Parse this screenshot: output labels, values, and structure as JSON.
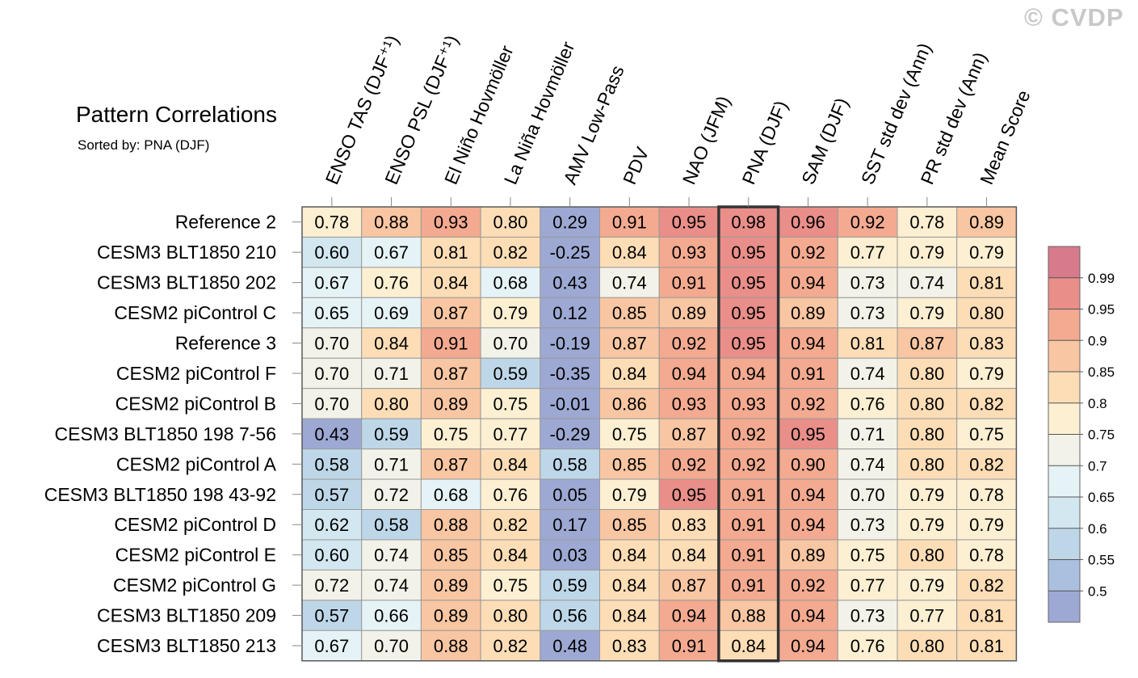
{
  "watermark": "© CVDP",
  "title": "Pattern Correlations",
  "subtitle": "Sorted by: PNA (DJF)",
  "chart_data": {
    "type": "heatmap",
    "title": "Pattern Correlations",
    "subtitle": "Sorted by: PNA (DJF)",
    "columns": [
      "ENSO TAS (DJF⁺¹)",
      "ENSO PSL (DJF⁺¹)",
      "El Niño Hovmöller",
      "La Niña Hovmöller",
      "AMV Low-Pass",
      "PDV",
      "NAO (JFM)",
      "PNA (DJF)",
      "SAM (DJF)",
      "SST std dev (Ann)",
      "PR std dev (Ann)",
      "Mean Score"
    ],
    "rows": [
      "Reference 2",
      "CESM3 BLT1850 210",
      "CESM3 BLT1850 202",
      "CESM2 piControl C",
      "Reference 3",
      "CESM2 piControl F",
      "CESM2 piControl B",
      "CESM3 BLT1850 198 7-56",
      "CESM2 piControl A",
      "CESM3 BLT1850 198 43-92",
      "CESM2 piControl D",
      "CESM2 piControl E",
      "CESM2 piControl G",
      "CESM3 BLT1850 209",
      "CESM3 BLT1850 213"
    ],
    "values": [
      [
        0.78,
        0.88,
        0.93,
        0.8,
        0.29,
        0.91,
        0.95,
        0.98,
        0.96,
        0.92,
        0.78,
        0.89
      ],
      [
        0.6,
        0.67,
        0.81,
        0.82,
        -0.25,
        0.84,
        0.93,
        0.95,
        0.92,
        0.77,
        0.79,
        0.79
      ],
      [
        0.67,
        0.76,
        0.84,
        0.68,
        0.43,
        0.74,
        0.91,
        0.95,
        0.94,
        0.73,
        0.74,
        0.81
      ],
      [
        0.65,
        0.69,
        0.87,
        0.79,
        0.12,
        0.85,
        0.89,
        0.95,
        0.89,
        0.73,
        0.79,
        0.8
      ],
      [
        0.7,
        0.84,
        0.91,
        0.7,
        -0.19,
        0.87,
        0.92,
        0.95,
        0.94,
        0.81,
        0.87,
        0.83
      ],
      [
        0.7,
        0.71,
        0.87,
        0.59,
        -0.35,
        0.84,
        0.94,
        0.94,
        0.91,
        0.74,
        0.8,
        0.79
      ],
      [
        0.7,
        0.8,
        0.89,
        0.75,
        -0.01,
        0.86,
        0.93,
        0.93,
        0.92,
        0.76,
        0.8,
        0.82
      ],
      [
        0.43,
        0.59,
        0.75,
        0.77,
        -0.29,
        0.75,
        0.87,
        0.92,
        0.95,
        0.71,
        0.8,
        0.75
      ],
      [
        0.58,
        0.71,
        0.87,
        0.84,
        0.58,
        0.85,
        0.92,
        0.92,
        0.9,
        0.74,
        0.8,
        0.82
      ],
      [
        0.57,
        0.72,
        0.68,
        0.76,
        0.05,
        0.79,
        0.95,
        0.91,
        0.94,
        0.7,
        0.79,
        0.78
      ],
      [
        0.62,
        0.58,
        0.88,
        0.82,
        0.17,
        0.85,
        0.83,
        0.91,
        0.94,
        0.73,
        0.79,
        0.79
      ],
      [
        0.6,
        0.74,
        0.85,
        0.84,
        0.03,
        0.84,
        0.84,
        0.91,
        0.89,
        0.75,
        0.8,
        0.78
      ],
      [
        0.72,
        0.74,
        0.89,
        0.75,
        0.59,
        0.84,
        0.87,
        0.91,
        0.92,
        0.77,
        0.79,
        0.82
      ],
      [
        0.57,
        0.66,
        0.89,
        0.8,
        0.56,
        0.84,
        0.94,
        0.88,
        0.94,
        0.73,
        0.77,
        0.81
      ],
      [
        0.67,
        0.7,
        0.88,
        0.82,
        0.48,
        0.83,
        0.91,
        0.84,
        0.94,
        0.76,
        0.8,
        0.81
      ]
    ],
    "highlighted_column": "PNA (DJF)",
    "colorbar": {
      "levels": [
        0.5,
        0.55,
        0.6,
        0.65,
        0.7,
        0.75,
        0.8,
        0.85,
        0.9,
        0.95,
        0.99
      ],
      "labels": [
        "0.5",
        "0.55",
        "0.6",
        "0.65",
        "0.7",
        "0.75",
        "0.8",
        "0.85",
        "0.9",
        "0.95",
        "0.99"
      ],
      "colors": [
        "#9da9d3",
        "#aac0de",
        "#bed7e8",
        "#d3e7f0",
        "#e6f3f6",
        "#f2f2e8",
        "#fcefd2",
        "#fcddb6",
        "#f8c6a2",
        "#f3aa90",
        "#e98e89",
        "#d77a8b"
      ]
    },
    "legend": "right"
  }
}
